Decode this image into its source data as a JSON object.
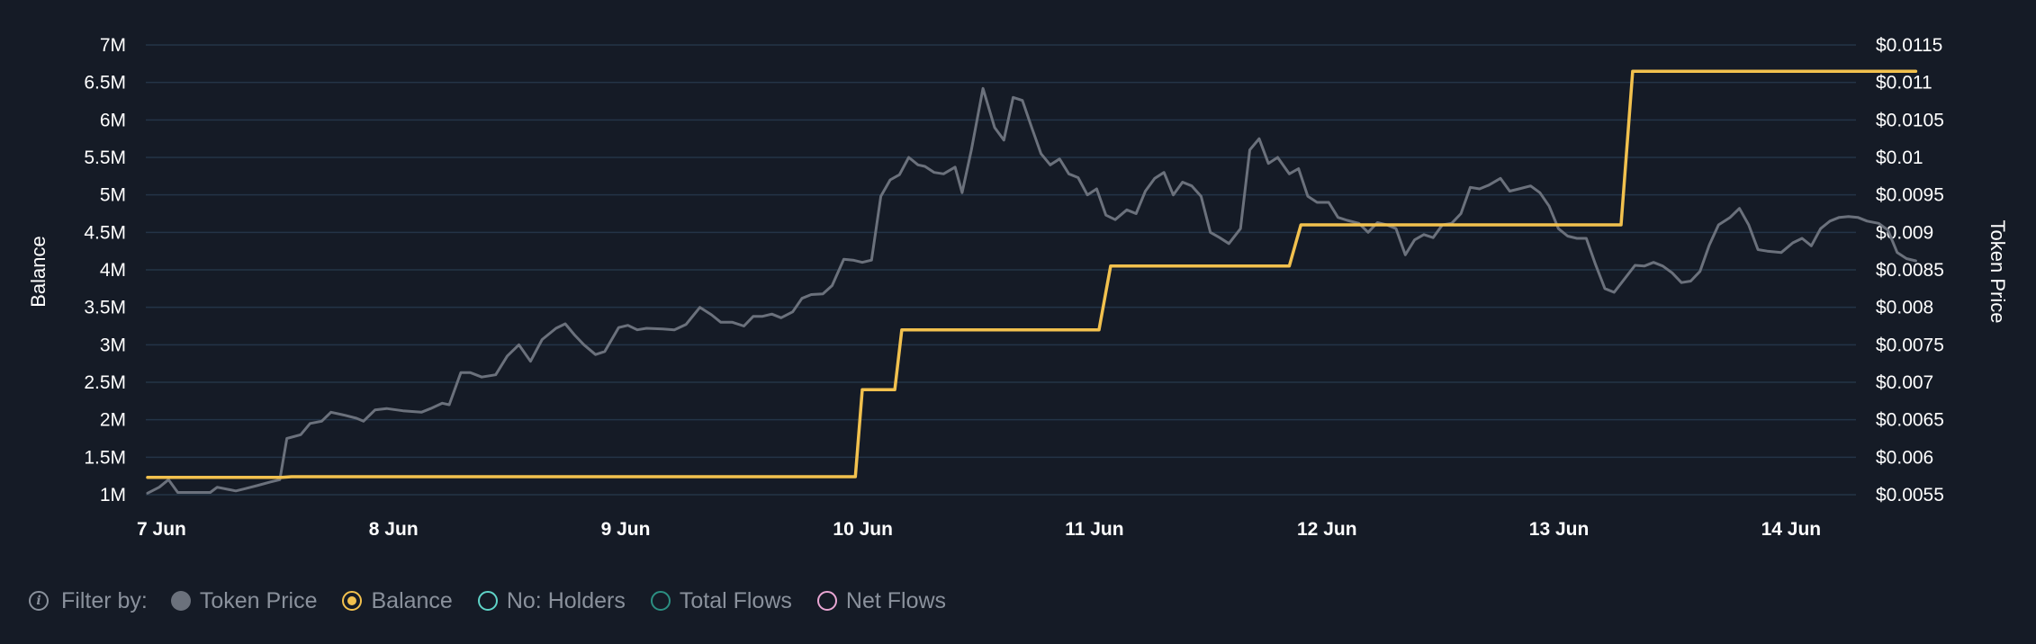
{
  "chart_data": {
    "type": "line",
    "left_axis": {
      "label": "Balance",
      "ticks": [
        "1M",
        "1.5M",
        "2M",
        "2.5M",
        "3M",
        "3.5M",
        "4M",
        "4.5M",
        "5M",
        "5.5M",
        "6M",
        "6.5M",
        "7M"
      ],
      "values": [
        1000000,
        1500000,
        2000000,
        2500000,
        3000000,
        3500000,
        4000000,
        4500000,
        5000000,
        5500000,
        6000000,
        6500000,
        7000000
      ],
      "ylim": [
        1000000,
        7000000
      ]
    },
    "right_axis": {
      "label": "Token Price",
      "ticks": [
        "$0.0055",
        "$0.006",
        "$0.0065",
        "$0.007",
        "$0.0075",
        "$0.008",
        "$0.0085",
        "$0.009",
        "$0.0095",
        "$0.01",
        "$0.0105",
        "$0.011",
        "$0.0115"
      ],
      "values": [
        0.0055,
        0.006,
        0.0065,
        0.007,
        0.0075,
        0.008,
        0.0085,
        0.009,
        0.0095,
        0.01,
        0.0105,
        0.011,
        0.0115
      ],
      "ylim": [
        0.0055,
        0.0115
      ]
    },
    "x_axis": {
      "ticks": [
        "7 Jun",
        "8 Jun",
        "9 Jun",
        "10 Jun",
        "11 Jun",
        "12 Jun",
        "13 Jun",
        "14 Jun"
      ],
      "range_days": [
        0,
        8.3
      ]
    },
    "grid": true,
    "colors": {
      "token_price": "#6b717c",
      "balance": "#f2c14e",
      "grid": "#243447",
      "background": "#151b26"
    },
    "series": [
      {
        "name": "Token Price",
        "axis": "right",
        "points": [
          [
            0.0,
            0.00552
          ],
          [
            0.05,
            0.0056
          ],
          [
            0.09,
            0.0057
          ],
          [
            0.13,
            0.00553
          ],
          [
            0.2,
            0.00553
          ],
          [
            0.27,
            0.00553
          ],
          [
            0.3,
            0.0056
          ],
          [
            0.38,
            0.00555
          ],
          [
            0.42,
            0.00558
          ],
          [
            0.47,
            0.00562
          ],
          [
            0.53,
            0.00567
          ],
          [
            0.57,
            0.0057
          ],
          [
            0.6,
            0.00625
          ],
          [
            0.66,
            0.0063
          ],
          [
            0.7,
            0.00645
          ],
          [
            0.75,
            0.00648
          ],
          [
            0.79,
            0.0066
          ],
          [
            0.85,
            0.00656
          ],
          [
            0.9,
            0.00652
          ],
          [
            0.93,
            0.00648
          ],
          [
            0.98,
            0.00663
          ],
          [
            1.03,
            0.00665
          ],
          [
            1.1,
            0.00662
          ],
          [
            1.18,
            0.0066
          ],
          [
            1.22,
            0.00665
          ],
          [
            1.27,
            0.00672
          ],
          [
            1.3,
            0.0067
          ],
          [
            1.35,
            0.00713
          ],
          [
            1.39,
            0.00713
          ],
          [
            1.44,
            0.00707
          ],
          [
            1.5,
            0.0071
          ],
          [
            1.55,
            0.00735
          ],
          [
            1.6,
            0.0075
          ],
          [
            1.65,
            0.00728
          ],
          [
            1.7,
            0.00757
          ],
          [
            1.76,
            0.00772
          ],
          [
            1.8,
            0.00778
          ],
          [
            1.84,
            0.00763
          ],
          [
            1.88,
            0.0075
          ],
          [
            1.93,
            0.00737
          ],
          [
            1.97,
            0.00741
          ],
          [
            2.03,
            0.00773
          ],
          [
            2.07,
            0.00776
          ],
          [
            2.11,
            0.0077
          ],
          [
            2.15,
            0.00772
          ],
          [
            2.22,
            0.00771
          ],
          [
            2.27,
            0.0077
          ],
          [
            2.32,
            0.00777
          ],
          [
            2.38,
            0.008
          ],
          [
            2.43,
            0.0079
          ],
          [
            2.47,
            0.0078
          ],
          [
            2.52,
            0.0078
          ],
          [
            2.57,
            0.00775
          ],
          [
            2.61,
            0.00788
          ],
          [
            2.65,
            0.00788
          ],
          [
            2.69,
            0.00791
          ],
          [
            2.73,
            0.00786
          ],
          [
            2.78,
            0.00794
          ],
          [
            2.82,
            0.00812
          ],
          [
            2.86,
            0.00817
          ],
          [
            2.91,
            0.00818
          ],
          [
            2.95,
            0.00829
          ],
          [
            3.0,
            0.00864
          ],
          [
            3.04,
            0.00863
          ],
          [
            3.08,
            0.0086
          ],
          [
            3.12,
            0.00863
          ],
          [
            3.16,
            0.00948
          ],
          [
            3.2,
            0.0097
          ],
          [
            3.24,
            0.00977
          ],
          [
            3.28,
            0.01
          ],
          [
            3.32,
            0.0099
          ],
          [
            3.35,
            0.00988
          ],
          [
            3.39,
            0.0098
          ],
          [
            3.43,
            0.00978
          ],
          [
            3.48,
            0.00987
          ],
          [
            3.51,
            0.00953
          ],
          [
            3.55,
            0.0101
          ],
          [
            3.6,
            0.01092
          ],
          [
            3.65,
            0.0104
          ],
          [
            3.69,
            0.01023
          ],
          [
            3.73,
            0.0108
          ],
          [
            3.77,
            0.01076
          ],
          [
            3.81,
            0.0104
          ],
          [
            3.85,
            0.01005
          ],
          [
            3.89,
            0.0099
          ],
          [
            3.93,
            0.00998
          ],
          [
            3.97,
            0.00978
          ],
          [
            4.01,
            0.00973
          ],
          [
            4.05,
            0.0095
          ],
          [
            4.09,
            0.00958
          ],
          [
            4.13,
            0.00923
          ],
          [
            4.17,
            0.00917
          ],
          [
            4.22,
            0.0093
          ],
          [
            4.26,
            0.00925
          ],
          [
            4.3,
            0.00955
          ],
          [
            4.34,
            0.00972
          ],
          [
            4.38,
            0.0098
          ],
          [
            4.42,
            0.0095
          ],
          [
            4.46,
            0.00967
          ],
          [
            4.5,
            0.00962
          ],
          [
            4.54,
            0.00948
          ],
          [
            4.58,
            0.009
          ],
          [
            4.62,
            0.00893
          ],
          [
            4.66,
            0.00885
          ],
          [
            4.71,
            0.00905
          ],
          [
            4.75,
            0.0101
          ],
          [
            4.79,
            0.01025
          ],
          [
            4.83,
            0.00992
          ],
          [
            4.87,
            0.01
          ],
          [
            4.92,
            0.00978
          ],
          [
            4.96,
            0.00985
          ],
          [
            5.0,
            0.00948
          ],
          [
            5.04,
            0.0094
          ],
          [
            5.09,
            0.0094
          ],
          [
            5.13,
            0.0092
          ],
          [
            5.17,
            0.00916
          ],
          [
            5.22,
            0.00912
          ],
          [
            5.26,
            0.009
          ],
          [
            5.3,
            0.00913
          ],
          [
            5.34,
            0.0091
          ],
          [
            5.38,
            0.00905
          ],
          [
            5.42,
            0.0087
          ],
          [
            5.46,
            0.0089
          ],
          [
            5.5,
            0.00897
          ],
          [
            5.54,
            0.00893
          ],
          [
            5.58,
            0.0091
          ],
          [
            5.62,
            0.00912
          ],
          [
            5.66,
            0.00925
          ],
          [
            5.7,
            0.0096
          ],
          [
            5.74,
            0.00958
          ],
          [
            5.78,
            0.00963
          ],
          [
            5.83,
            0.00972
          ],
          [
            5.87,
            0.00955
          ],
          [
            5.91,
            0.00958
          ],
          [
            5.96,
            0.00962
          ],
          [
            6.0,
            0.00953
          ],
          [
            6.04,
            0.00935
          ],
          [
            6.08,
            0.00905
          ],
          [
            6.12,
            0.00895
          ],
          [
            6.16,
            0.00892
          ],
          [
            6.2,
            0.00892
          ],
          [
            6.24,
            0.00857
          ],
          [
            6.28,
            0.00825
          ],
          [
            6.32,
            0.0082
          ],
          [
            6.36,
            0.00836
          ],
          [
            6.41,
            0.00856
          ],
          [
            6.45,
            0.00855
          ],
          [
            6.49,
            0.0086
          ],
          [
            6.53,
            0.00855
          ],
          [
            6.57,
            0.00846
          ],
          [
            6.61,
            0.00833
          ],
          [
            6.65,
            0.00835
          ],
          [
            6.69,
            0.00848
          ],
          [
            6.73,
            0.00883
          ],
          [
            6.77,
            0.0091
          ],
          [
            6.82,
            0.0092
          ],
          [
            6.86,
            0.00932
          ],
          [
            6.9,
            0.0091
          ],
          [
            6.94,
            0.00877
          ],
          [
            6.98,
            0.00875
          ],
          [
            7.04,
            0.00873
          ],
          [
            7.09,
            0.00886
          ],
          [
            7.13,
            0.00892
          ],
          [
            7.17,
            0.00882
          ],
          [
            7.21,
            0.00905
          ],
          [
            7.25,
            0.00915
          ],
          [
            7.29,
            0.0092
          ],
          [
            7.33,
            0.00921
          ],
          [
            7.37,
            0.0092
          ],
          [
            7.41,
            0.00915
          ],
          [
            7.46,
            0.00912
          ],
          [
            7.5,
            0.00903
          ],
          [
            7.54,
            0.00873
          ],
          [
            7.58,
            0.00865
          ],
          [
            7.62,
            0.00862
          ]
        ]
      },
      {
        "name": "Balance",
        "axis": "left",
        "points": [
          [
            0.0,
            1230000
          ],
          [
            0.58,
            1230000
          ],
          [
            0.62,
            1240000
          ],
          [
            2.0,
            1240000
          ],
          [
            3.05,
            1240000
          ],
          [
            3.08,
            2400000
          ],
          [
            3.22,
            2400000
          ],
          [
            3.25,
            3200000
          ],
          [
            4.1,
            3200000
          ],
          [
            4.15,
            4050000
          ],
          [
            4.92,
            4050000
          ],
          [
            4.97,
            4600000
          ],
          [
            6.35,
            4600000
          ],
          [
            6.4,
            6650000
          ],
          [
            7.62,
            6650000
          ]
        ]
      }
    ]
  },
  "legend": {
    "filter_label": "Filter by:",
    "items": [
      "Token Price",
      "Balance",
      "No: Holders",
      "Total Flows",
      "Net Flows"
    ]
  },
  "icons": {
    "info": "info-icon"
  }
}
